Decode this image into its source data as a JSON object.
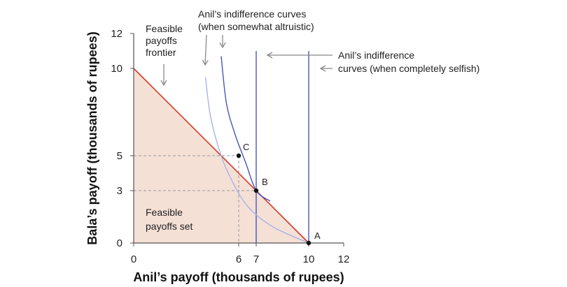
{
  "chart_data": {
    "type": "line",
    "xlabel": "Anil’s payoff (thousands of rupees)",
    "ylabel": "Bala’s payoff (thousands of rupees)",
    "xlim": [
      0,
      12
    ],
    "ylim": [
      0,
      12
    ],
    "xticks": [
      0,
      6,
      7,
      10,
      12
    ],
    "yticks": [
      0,
      3,
      5,
      10,
      12
    ],
    "colors": {
      "frontier": "#d13a2a",
      "feasible_fill": "#f5e0d6",
      "selfish_ic": "#4a56b8",
      "altruistic_ic_dark": "#4a56b8",
      "altruistic_ic_light": "#a9b3e6",
      "arrows": "#888888",
      "dashed": "#999999"
    },
    "frontier": {
      "from": [
        0,
        10
      ],
      "to": [
        10,
        0
      ]
    },
    "feasible_set_label": "Feasible payoffs set",
    "frontier_label": "Feasible payoffs frontier",
    "selfish_ic_label": "Anil’s indifference curves (when completely selfish)",
    "altruistic_ic_label": "Anil’s indifference curves (when somewhat altruistic)",
    "selfish_curves": [
      {
        "x": 7
      },
      {
        "x": 10
      }
    ],
    "altruistic_curves": [
      {
        "shade": "light",
        "points": [
          [
            4.1,
            9.5
          ],
          [
            4.4,
            7.2
          ],
          [
            5.0,
            5.0
          ],
          [
            5.7,
            3.4
          ],
          [
            6.6,
            2.0
          ],
          [
            8.0,
            0.9
          ],
          [
            10.0,
            0.0
          ]
        ]
      },
      {
        "shade": "dark",
        "points": [
          [
            5.0,
            10.7
          ],
          [
            5.3,
            8.0
          ],
          [
            5.8,
            6.2
          ],
          [
            6.4,
            4.6
          ],
          [
            7.0,
            3.0
          ],
          [
            7.8,
            2.4
          ]
        ]
      }
    ],
    "points": [
      {
        "label": "A",
        "x": 10,
        "y": 0
      },
      {
        "label": "B",
        "x": 7,
        "y": 3
      },
      {
        "label": "C",
        "x": 6,
        "y": 5
      }
    ],
    "dashed_guides": [
      {
        "x": 6,
        "y": 5
      },
      {
        "x": 7,
        "y": 3
      }
    ]
  }
}
